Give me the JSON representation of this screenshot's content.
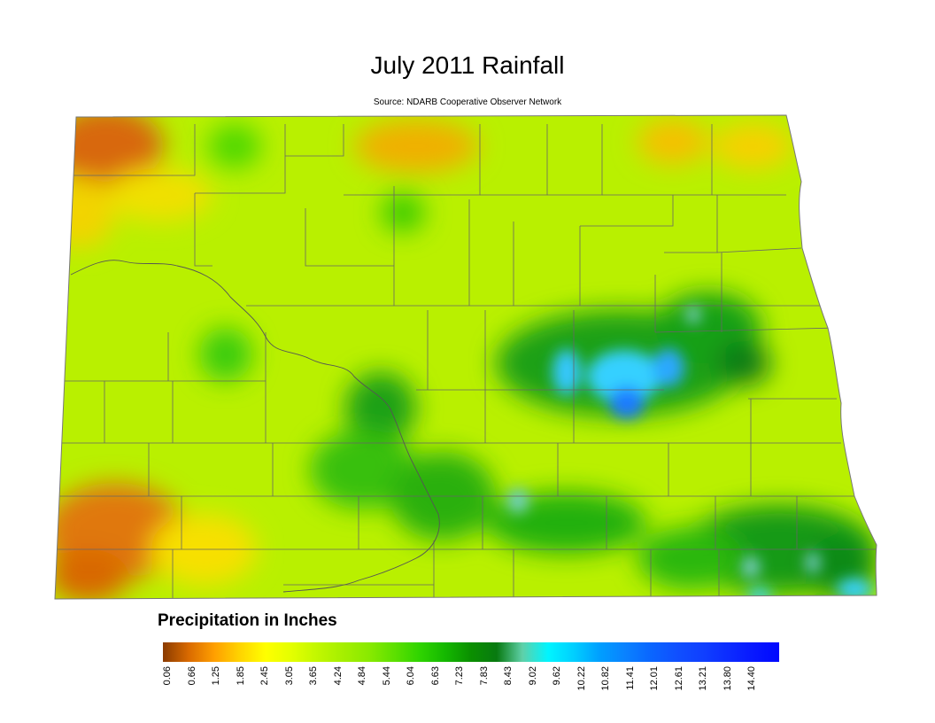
{
  "title": "July 2011 Rainfall",
  "subtitle": "Source: NDARB Cooperative Observer Network",
  "legend": {
    "title": "Precipitation in Inches",
    "ticks": [
      "0.06",
      "0.66",
      "1.25",
      "1.85",
      "2.45",
      "3.05",
      "3.65",
      "4.24",
      "4.84",
      "5.44",
      "6.04",
      "6.63",
      "7.23",
      "7.83",
      "8.43",
      "9.02",
      "9.62",
      "10.22",
      "10.82",
      "11.41",
      "12.01",
      "12.61",
      "13.21",
      "13.80",
      "14.40"
    ],
    "colors": [
      "#8a3b00",
      "#d96a00",
      "#ff9f00",
      "#ffd400",
      "#ffff00",
      "#e4ff00",
      "#c2f700",
      "#a6ef00",
      "#8aea00",
      "#5ee000",
      "#2fd400",
      "#14b800",
      "#0a8f00",
      "#087a10",
      "#5fd0a8",
      "#00f5ff",
      "#00cfff",
      "#009fff",
      "#0a82ff",
      "#0a66ff",
      "#1050ff",
      "#1040ff",
      "#0c2cff",
      "#0818ff",
      "#0008ff"
    ]
  },
  "regions": {
    "base_color": "#b9f000",
    "dry_color": "#e0780a",
    "yellow_color": "#f0e800",
    "wet_color": "#1aa012",
    "very_wet_color": "#35d0ff",
    "extreme_color": "#1a7bff"
  }
}
